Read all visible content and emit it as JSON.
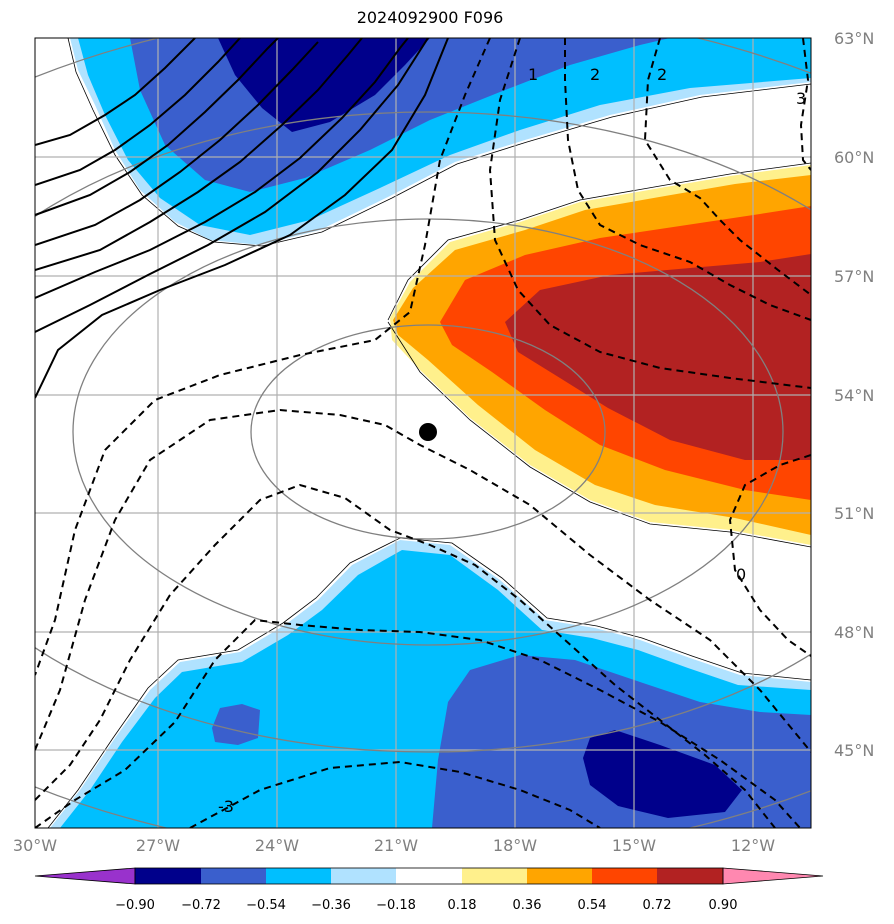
{
  "title": "2024092900 F096",
  "lon_labels": [
    "30°W",
    "27°W",
    "24°W",
    "21°W",
    "18°W",
    "15°W",
    "12°W"
  ],
  "lat_labels": [
    "63°N",
    "60°N",
    "57°N",
    "54°N",
    "51°N",
    "48°N",
    "45°N"
  ],
  "colorbar": {
    "tick_labels": [
      "−0.90",
      "−0.72",
      "−0.54",
      "−0.36",
      "−0.18",
      "0.18",
      "0.36",
      "0.54",
      "0.72",
      "0.90"
    ],
    "colors": [
      "#9932cc",
      "#00008b",
      "#3a5fcd",
      "#00bfff",
      "#b0e2ff",
      "#ffffff",
      "#fff08c",
      "#ffa500",
      "#ff4500",
      "#b22222",
      "#ff88b0"
    ]
  },
  "contour_labels": {
    "c1": "1",
    "c2a": "2",
    "c2b": "2",
    "c3a": "3",
    "c0": "0",
    "c3b": "-3"
  },
  "marker": {
    "name": "storm-center",
    "lon": -20.2,
    "lat": 53.0
  },
  "grid_color": "#b0b0b0",
  "range_ring_color": "#808080"
}
